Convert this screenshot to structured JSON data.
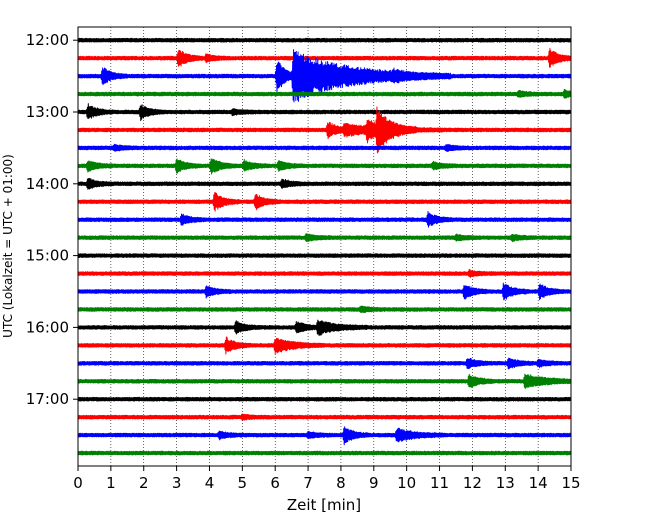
{
  "chart_data": {
    "type": "line",
    "subtype": "helicorder-seismogram",
    "xlabel": "Zeit  [min]",
    "ylabel": "UTC (Lokalzeit = UTC + 01:00)",
    "xlim": [
      0,
      15
    ],
    "x_ticks": [
      "0",
      "1",
      "2",
      "3",
      "4",
      "5",
      "6",
      "7",
      "8",
      "9",
      "10",
      "11",
      "12",
      "13",
      "14",
      "15"
    ],
    "y_tick_labels": [
      "12:00",
      "13:00",
      "14:00",
      "15:00",
      "16:00",
      "17:00"
    ],
    "traces_per_hour": 4,
    "minutes_per_trace": 15,
    "grid": "vertical dotted at every minute",
    "trace_colors": [
      "#000000",
      "#ff0000",
      "#0000ff",
      "#008000"
    ],
    "traces": [
      {
        "start": "12:00",
        "events": []
      },
      {
        "start": "12:15",
        "events": [
          {
            "t": 3.05,
            "amp": 0.55
          },
          {
            "t": 3.9,
            "amp": 0.2
          },
          {
            "t": 14.35,
            "amp": 0.55
          }
        ]
      },
      {
        "start": "12:30",
        "events": [
          {
            "t": 0.75,
            "amp": 0.5
          },
          {
            "t": 6.05,
            "amp": 1.0
          },
          {
            "t": 6.55,
            "amp": 1.6,
            "dur": 1.6
          },
          {
            "t": 9.6,
            "amp": 0.2
          }
        ]
      },
      {
        "start": "12:45",
        "events": [
          {
            "t": 13.4,
            "amp": 0.15
          },
          {
            "t": 14.8,
            "amp": 0.2
          }
        ]
      },
      {
        "start": "13:00",
        "events": [
          {
            "t": 0.3,
            "amp": 0.45
          },
          {
            "t": 1.9,
            "amp": 0.45
          },
          {
            "t": 4.7,
            "amp": 0.15
          }
        ]
      },
      {
        "start": "13:15",
        "events": [
          {
            "t": 7.6,
            "amp": 0.5
          },
          {
            "t": 8.1,
            "amp": 0.35,
            "dur": 1.0
          },
          {
            "t": 8.8,
            "amp": 0.6
          },
          {
            "t": 9.1,
            "amp": 1.2,
            "dur": 0.4
          }
        ]
      },
      {
        "start": "13:30",
        "events": [
          {
            "t": 1.1,
            "amp": 0.15
          },
          {
            "t": 11.2,
            "amp": 0.15
          }
        ]
      },
      {
        "start": "13:45",
        "events": [
          {
            "t": 0.3,
            "amp": 0.3
          },
          {
            "t": 3.0,
            "amp": 0.4
          },
          {
            "t": 4.05,
            "amp": 0.5
          },
          {
            "t": 5.05,
            "amp": 0.3
          },
          {
            "t": 6.1,
            "amp": 0.3
          },
          {
            "t": 10.8,
            "amp": 0.2
          }
        ]
      },
      {
        "start": "14:00",
        "events": [
          {
            "t": 0.3,
            "amp": 0.3
          },
          {
            "t": 6.2,
            "amp": 0.25
          }
        ]
      },
      {
        "start": "14:15",
        "events": [
          {
            "t": 4.15,
            "amp": 0.55
          },
          {
            "t": 5.4,
            "amp": 0.45
          }
        ]
      },
      {
        "start": "14:30",
        "events": [
          {
            "t": 3.15,
            "amp": 0.3
          },
          {
            "t": 10.65,
            "amp": 0.4
          }
        ]
      },
      {
        "start": "14:45",
        "events": [
          {
            "t": 6.95,
            "amp": 0.2
          },
          {
            "t": 11.5,
            "amp": 0.15
          },
          {
            "t": 13.2,
            "amp": 0.15
          }
        ]
      },
      {
        "start": "15:00",
        "events": []
      },
      {
        "start": "15:15",
        "events": [
          {
            "t": 11.9,
            "amp": 0.15
          }
        ]
      },
      {
        "start": "15:30",
        "events": [
          {
            "t": 3.9,
            "amp": 0.3
          },
          {
            "t": 11.75,
            "amp": 0.45
          },
          {
            "t": 12.95,
            "amp": 0.55
          },
          {
            "t": 14.05,
            "amp": 0.45
          }
        ]
      },
      {
        "start": "15:45",
        "events": [
          {
            "t": 8.6,
            "amp": 0.15
          }
        ]
      },
      {
        "start": "16:00",
        "events": [
          {
            "t": 4.8,
            "amp": 0.35
          },
          {
            "t": 6.65,
            "amp": 0.35
          },
          {
            "t": 7.3,
            "amp": 0.45,
            "dur": 0.5
          }
        ]
      },
      {
        "start": "16:15",
        "events": [
          {
            "t": 4.5,
            "amp": 0.45
          },
          {
            "t": 6.0,
            "amp": 0.45,
            "dur": 0.5
          }
        ]
      },
      {
        "start": "16:30",
        "events": [
          {
            "t": 11.85,
            "amp": 0.3
          },
          {
            "t": 13.1,
            "amp": 0.3
          },
          {
            "t": 14.0,
            "amp": 0.2
          }
        ]
      },
      {
        "start": "16:45",
        "events": [
          {
            "t": 11.9,
            "amp": 0.45
          },
          {
            "t": 13.6,
            "amp": 0.4,
            "dur": 0.6
          }
        ]
      },
      {
        "start": "17:00",
        "events": []
      },
      {
        "start": "17:15",
        "events": [
          {
            "t": 5.0,
            "amp": 0.12
          }
        ]
      },
      {
        "start": "17:30",
        "events": [
          {
            "t": 4.3,
            "amp": 0.2
          },
          {
            "t": 7.0,
            "amp": 0.15
          },
          {
            "t": 8.1,
            "amp": 0.5
          },
          {
            "t": 9.7,
            "amp": 0.4,
            "dur": 0.5
          }
        ]
      },
      {
        "start": "17:45",
        "events": []
      }
    ]
  }
}
